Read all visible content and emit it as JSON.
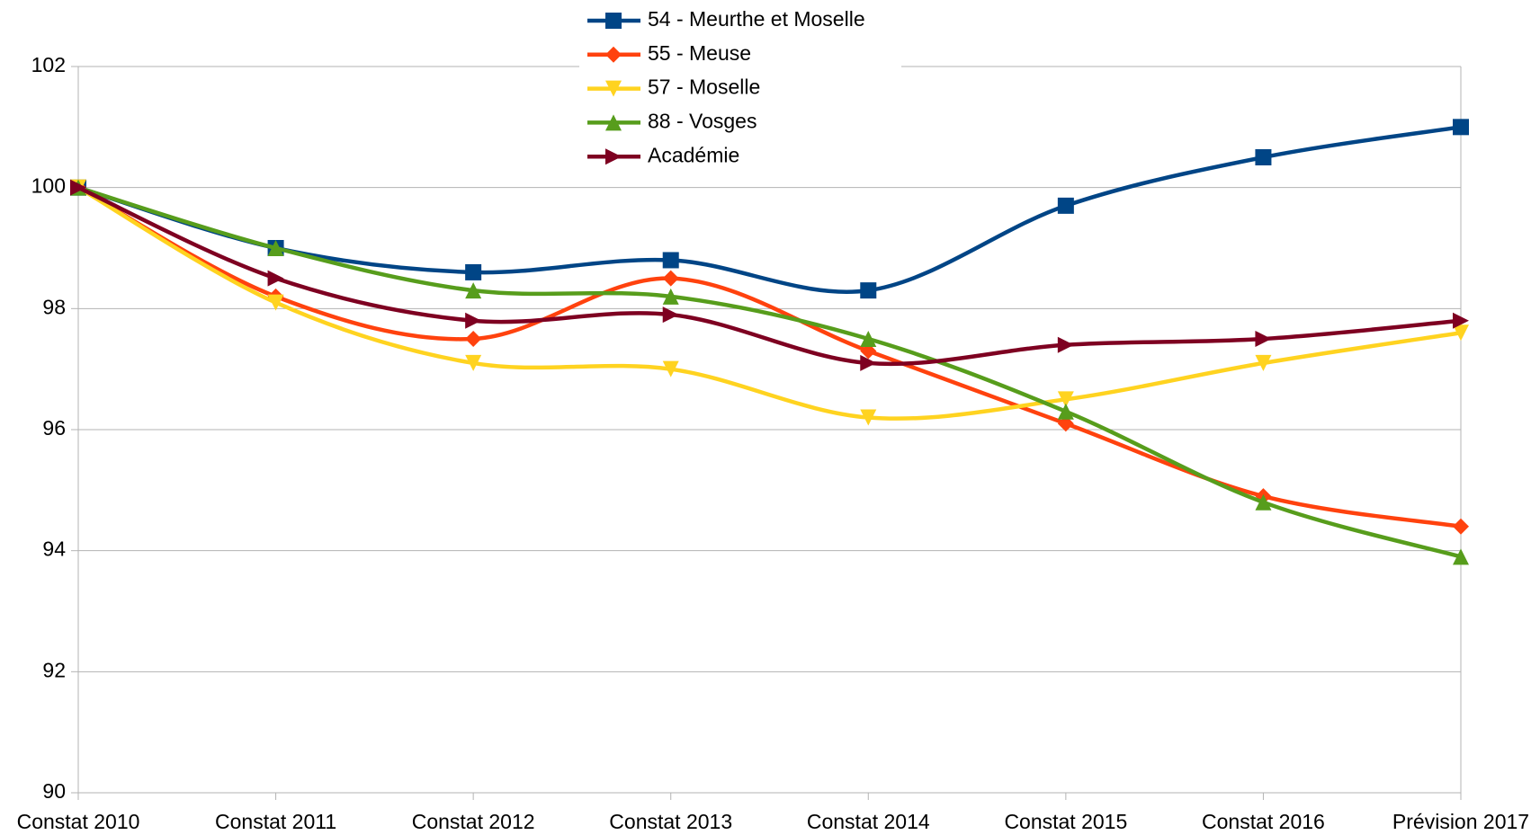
{
  "chart_data": {
    "type": "line",
    "categories": [
      "Constat 2010",
      "Constat 2011",
      "Constat 2012",
      "Constat 2013",
      "Constat 2014",
      "Constat 2015",
      "Constat 2016",
      "Prévision 2017"
    ],
    "series": [
      {
        "name": "54 - Meurthe et Moselle",
        "color": "#004586",
        "marker": "square",
        "values": [
          100,
          99,
          98.6,
          98.8,
          98.3,
          99.7,
          100.5,
          101
        ]
      },
      {
        "name": "55 - Meuse",
        "color": "#ff420e",
        "marker": "diamond",
        "values": [
          100,
          98.2,
          97.5,
          98.5,
          97.3,
          96.1,
          94.9,
          94.4
        ]
      },
      {
        "name": "57 - Moselle",
        "color": "#ffd320",
        "marker": "triangle-down",
        "values": [
          100,
          98.1,
          97.1,
          97.0,
          96.2,
          96.5,
          97.1,
          97.6
        ]
      },
      {
        "name": "88 - Vosges",
        "color": "#579d1c",
        "marker": "triangle-up",
        "values": [
          100,
          99,
          98.3,
          98.2,
          97.5,
          96.3,
          94.8,
          93.9
        ]
      },
      {
        "name": "Académie",
        "color": "#7e0021",
        "marker": "triangle-right",
        "values": [
          100,
          98.5,
          97.8,
          97.9,
          97.1,
          97.4,
          97.5,
          97.8
        ]
      }
    ],
    "ylim": [
      90,
      102
    ],
    "yticks": [
      90,
      92,
      94,
      96,
      98,
      100,
      102
    ],
    "grid": true,
    "legend": "top",
    "smooth": true
  }
}
